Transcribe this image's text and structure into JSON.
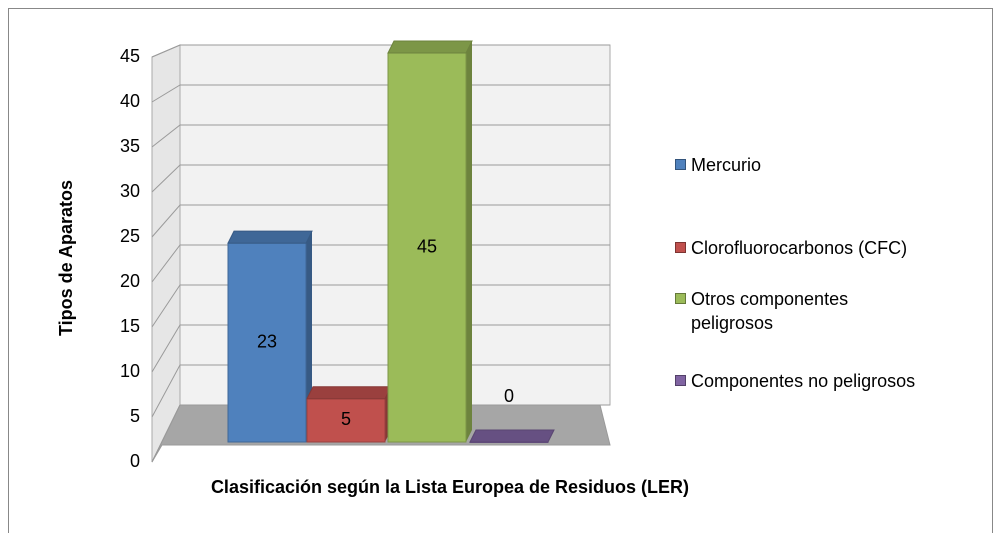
{
  "chart_data": {
    "type": "bar3d",
    "x_label": "Clasificación según la Lista Europea de Residuos (LER)",
    "y_label": "Tipos de Aparatos",
    "series": [
      {
        "name": "Mercurio",
        "color": "#4f81bd",
        "values": [
          23
        ]
      },
      {
        "name": "Clorofluorocarbonos (CFC)",
        "color": "#c0504d",
        "values": [
          5
        ]
      },
      {
        "name": "Otros componentes peligrosos",
        "color": "#9bbb59",
        "values": [
          45
        ]
      },
      {
        "name": "Componentes no peligrosos",
        "color": "#8064a2",
        "values": [
          0
        ]
      }
    ],
    "ylim": [
      0,
      45
    ],
    "yticks": [
      0,
      5,
      10,
      15,
      20,
      25,
      30,
      35,
      40,
      45
    ],
    "grid": true,
    "legend": "right"
  }
}
